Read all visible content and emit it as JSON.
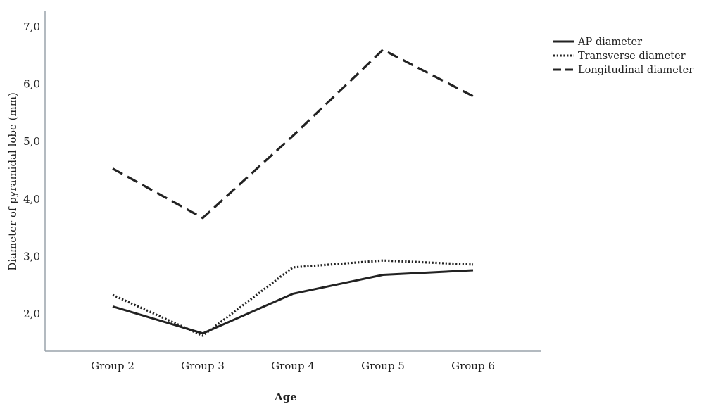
{
  "chart_data": {
    "type": "line",
    "title": "",
    "xlabel": "Age",
    "ylabel": "Diameter of pyramidal lobe (mm)",
    "categories": [
      "Group 2",
      "Group 3",
      "Group 4",
      "Group 5",
      "Group 6"
    ],
    "yticks": [
      "2,0",
      "3,0",
      "4,0",
      "5,0",
      "6,0",
      "7,0"
    ],
    "ylim": [
      1.3,
      7.3
    ],
    "grid": false,
    "legend_position": "top-right",
    "series": [
      {
        "name": "AP diameter",
        "style": "solid",
        "color": "#222222",
        "values": [
          2.13,
          1.66,
          2.35,
          2.68,
          2.76
        ]
      },
      {
        "name": "Transverse diameter",
        "style": "dotted",
        "color": "#222222",
        "values": [
          2.33,
          1.62,
          2.81,
          2.93,
          2.86
        ]
      },
      {
        "name": "Longitudinal diameter",
        "style": "dashed",
        "color": "#222222",
        "values": [
          4.53,
          3.67,
          5.1,
          6.6,
          5.79
        ]
      }
    ]
  }
}
